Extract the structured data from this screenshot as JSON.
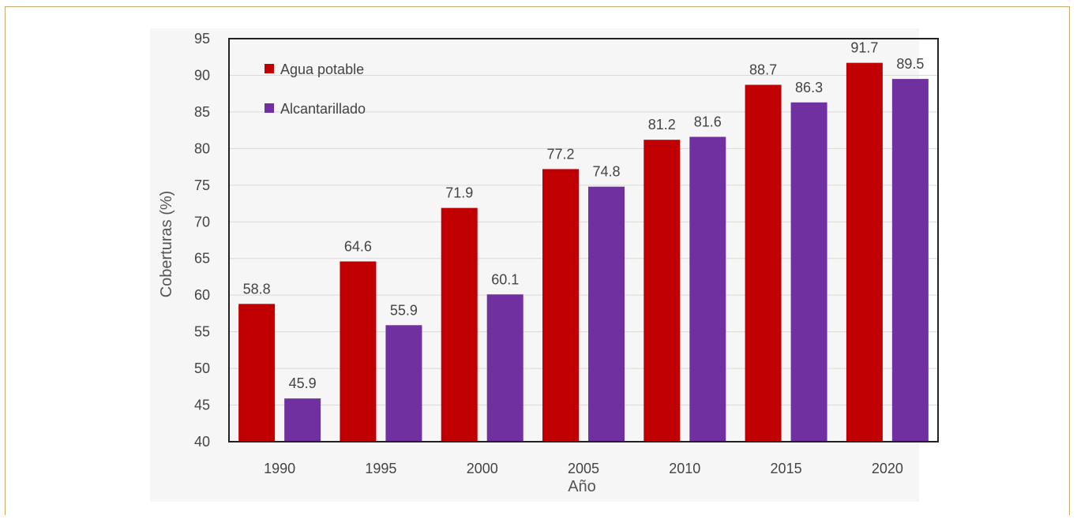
{
  "chart_data": {
    "type": "bar",
    "categories": [
      "1990",
      "1995",
      "2000",
      "2005",
      "2010",
      "2015",
      "2020"
    ],
    "series": [
      {
        "name": "Agua potable",
        "color": "#c00000",
        "values": [
          58.8,
          64.6,
          71.9,
          77.2,
          81.2,
          88.7,
          91.7
        ]
      },
      {
        "name": "Alcantarillado",
        "color": "#7030a0",
        "values": [
          45.9,
          55.9,
          60.1,
          74.8,
          81.6,
          86.3,
          89.5
        ]
      }
    ],
    "value_labels": [
      [
        "58.8",
        "64.6",
        "71.9",
        "77.2",
        "81.2",
        "88.7",
        "91.7"
      ],
      [
        "45.9",
        "55.9",
        "60.1",
        "74.8",
        "81.6",
        "86.3",
        "89.5"
      ]
    ],
    "xlabel": "Año",
    "ylabel": "Coberturas (%)",
    "ylim": [
      40,
      95
    ],
    "yticks": [
      "40",
      "45",
      "50",
      "55",
      "60",
      "65",
      "70",
      "75",
      "80",
      "85",
      "90",
      "95"
    ],
    "grid": true,
    "legend_position": "top-left inside"
  }
}
